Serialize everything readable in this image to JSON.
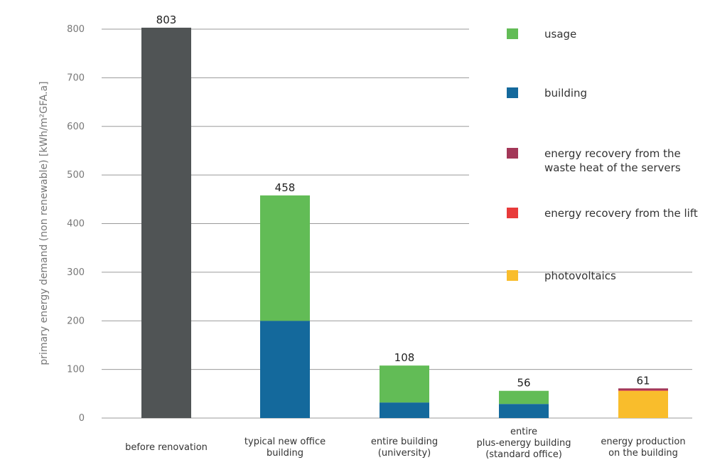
{
  "chart_data": {
    "type": "bar",
    "stacked": true,
    "title": "",
    "xlabel": "",
    "ylabel": "primary energy demand (non renewable) [kWh/m²GFA.a]",
    "ylim": [
      0,
      800
    ],
    "yticks": [
      0,
      100,
      200,
      300,
      400,
      500,
      600,
      700,
      800
    ],
    "grid": true,
    "legend_position": "right",
    "categories": [
      [
        "before renovation"
      ],
      [
        "typical new office",
        "building"
      ],
      [
        "entire building",
        "(university)"
      ],
      [
        "entire",
        "plus-energy building",
        "(standard office)"
      ],
      [
        "energy production",
        "on the building"
      ]
    ],
    "totals": [
      "803",
      "458",
      "108",
      "56",
      "61"
    ],
    "series": [
      {
        "name": "before renovation",
        "color": "#505455",
        "values": [
          803,
          0,
          0,
          0,
          0
        ]
      },
      {
        "name": "building",
        "color": "#14699c",
        "values": [
          0,
          200,
          32,
          29,
          0
        ]
      },
      {
        "name": "usage",
        "color": "#62bc56",
        "values": [
          0,
          258,
          76,
          27,
          0
        ]
      },
      {
        "name": "photovoltaics",
        "color": "#f9bd2c",
        "values": [
          0,
          0,
          0,
          0,
          56
        ]
      },
      {
        "name": "energy recovery from the lift",
        "color": "#e83a3a",
        "values": [
          0,
          0,
          0,
          0,
          1
        ]
      },
      {
        "name": "energy recovery from the waste heat of the servers",
        "color": "#a33758",
        "values": [
          0,
          0,
          0,
          0,
          4
        ]
      }
    ],
    "legend": [
      {
        "lines": [
          "usage"
        ],
        "color": "#62bc56"
      },
      {
        "lines": [
          "building"
        ],
        "color": "#14699c"
      },
      {
        "lines": [
          "energy recovery from the",
          "waste heat of the servers"
        ],
        "color": "#a33758"
      },
      {
        "lines": [
          "energy recovery from the lift"
        ],
        "color": "#e83a3a"
      },
      {
        "lines": [
          "photovoltaics"
        ],
        "color": "#f9bd2c"
      }
    ]
  }
}
